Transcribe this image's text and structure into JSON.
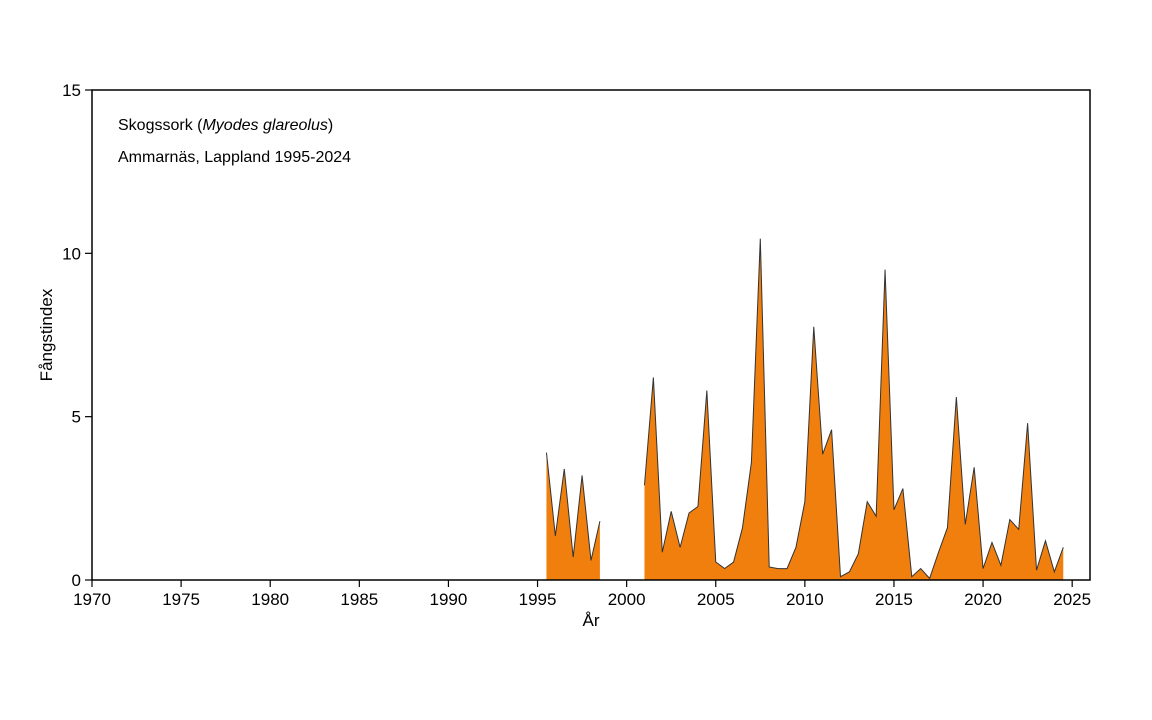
{
  "chart_data": {
    "type": "area",
    "annotation": {
      "line1_prefix": "Skogssork (",
      "line1_species": "Myodes glareolus",
      "line1_suffix": ")",
      "line2": "Ammarnäs, Lappland 1995-2024"
    },
    "xlabel": "År",
    "ylabel": "Fångstindex",
    "xlim": [
      1970,
      2026
    ],
    "ylim": [
      0,
      15
    ],
    "x_ticks": [
      1970,
      1975,
      1980,
      1985,
      1990,
      1995,
      2000,
      2005,
      2010,
      2015,
      2020,
      2025
    ],
    "y_ticks": [
      0,
      5,
      10,
      15
    ],
    "fill_color": "#f07f0e",
    "line_color": "#333333",
    "grid": false,
    "segments": [
      {
        "x": [
          1995.5,
          1996.0,
          1996.5,
          1997.0,
          1997.5,
          1998.0,
          1998.5
        ],
        "y": [
          3.9,
          1.35,
          3.4,
          0.7,
          3.2,
          0.6,
          1.8
        ]
      },
      {
        "x": [
          2001.0,
          2001.5,
          2002.0,
          2002.5,
          2003.0,
          2003.5,
          2004.0,
          2004.5,
          2005.0,
          2005.5,
          2006.0,
          2006.5,
          2007.0,
          2007.5,
          2008.0,
          2008.5,
          2009.0,
          2009.5,
          2010.0,
          2010.5,
          2011.0,
          2011.5,
          2012.0,
          2012.5,
          2013.0,
          2013.5,
          2014.0,
          2014.5,
          2015.0,
          2015.5,
          2016.0,
          2016.5,
          2017.0,
          2017.5,
          2018.0,
          2018.5,
          2019.0,
          2019.5,
          2020.0,
          2020.5,
          2021.0,
          2021.5,
          2022.0,
          2022.5,
          2023.0,
          2023.5,
          2024.0,
          2024.5
        ],
        "y": [
          2.9,
          6.2,
          0.85,
          2.1,
          1.0,
          2.05,
          2.25,
          5.8,
          0.55,
          0.35,
          0.55,
          1.6,
          3.6,
          10.45,
          0.4,
          0.35,
          0.35,
          1.0,
          2.4,
          7.75,
          3.85,
          4.6,
          0.1,
          0.25,
          0.8,
          2.4,
          1.95,
          9.5,
          2.15,
          2.8,
          0.1,
          0.35,
          0.05,
          0.85,
          1.6,
          5.6,
          1.7,
          3.45,
          0.35,
          1.15,
          0.45,
          1.85,
          1.55,
          4.8,
          0.3,
          1.2,
          0.25,
          1.0
        ]
      }
    ]
  }
}
